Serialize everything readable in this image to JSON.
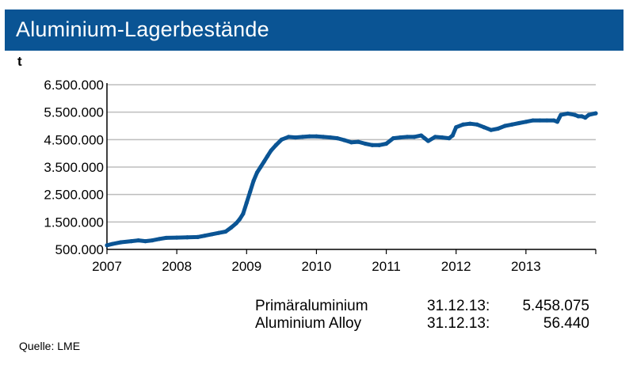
{
  "title": "Aluminium-Lagerbestände",
  "chart_data": {
    "type": "line",
    "title": "Aluminium-Lagerbestände",
    "ylabel": "t",
    "xlabel": "",
    "y_ticks": [
      "6.500.000",
      "5.500.000",
      "4.500.000",
      "3.500.000",
      "2.500.000",
      "1.500.000",
      "500.000"
    ],
    "x_ticks": [
      "2007",
      "2008",
      "2009",
      "2010",
      "2011",
      "2012",
      "2013"
    ],
    "ylim": [
      500000,
      6500000
    ],
    "xlim": [
      2007.0,
      2014.0
    ],
    "grid": "horizontal",
    "series": [
      {
        "color": "#0a5494",
        "x": [
          2007.0,
          2007.08,
          2007.2,
          2007.35,
          2007.45,
          2007.55,
          2007.65,
          2007.75,
          2007.85,
          2008.0,
          2008.15,
          2008.3,
          2008.4,
          2008.5,
          2008.6,
          2008.7,
          2008.78,
          2008.85,
          2008.9,
          2008.95,
          2009.0,
          2009.05,
          2009.1,
          2009.15,
          2009.2,
          2009.25,
          2009.3,
          2009.35,
          2009.42,
          2009.5,
          2009.6,
          2009.7,
          2009.8,
          2009.9,
          2010.0,
          2010.1,
          2010.2,
          2010.3,
          2010.4,
          2010.5,
          2010.6,
          2010.7,
          2010.8,
          2010.9,
          2011.0,
          2011.1,
          2011.2,
          2011.3,
          2011.4,
          2011.5,
          2011.55,
          2011.6,
          2011.7,
          2011.8,
          2011.9,
          2011.95,
          2012.0,
          2012.1,
          2012.2,
          2012.3,
          2012.4,
          2012.5,
          2012.6,
          2012.7,
          2012.8,
          2012.9,
          2013.0,
          2013.1,
          2013.2,
          2013.3,
          2013.4,
          2013.45,
          2013.5,
          2013.6,
          2013.7,
          2013.75,
          2013.8,
          2013.85,
          2013.9,
          2014.0
        ],
        "y": [
          650000,
          700000,
          760000,
          800000,
          830000,
          800000,
          830000,
          880000,
          920000,
          930000,
          940000,
          950000,
          1000000,
          1050000,
          1100000,
          1150000,
          1300000,
          1450000,
          1600000,
          1800000,
          2200000,
          2600000,
          3000000,
          3300000,
          3500000,
          3700000,
          3900000,
          4100000,
          4300000,
          4500000,
          4600000,
          4580000,
          4600000,
          4620000,
          4620000,
          4600000,
          4580000,
          4550000,
          4480000,
          4400000,
          4420000,
          4350000,
          4300000,
          4300000,
          4350000,
          4550000,
          4580000,
          4600000,
          4600000,
          4650000,
          4550000,
          4450000,
          4600000,
          4580000,
          4550000,
          4650000,
          4950000,
          5050000,
          5080000,
          5050000,
          4950000,
          4850000,
          4900000,
          5000000,
          5050000,
          5100000,
          5150000,
          5200000,
          5200000,
          5200000,
          5200000,
          5150000,
          5400000,
          5450000,
          5400000,
          5350000,
          5350000,
          5300000,
          5400000,
          5458075
        ]
      }
    ]
  },
  "info": [
    {
      "name": "Primäraluminium",
      "date": "31.12.13:",
      "value": "5.458.075"
    },
    {
      "name": "Aluminium Alloy",
      "date": "31.12.13:",
      "value": "56.440"
    }
  ],
  "source": "Quelle:  LME"
}
